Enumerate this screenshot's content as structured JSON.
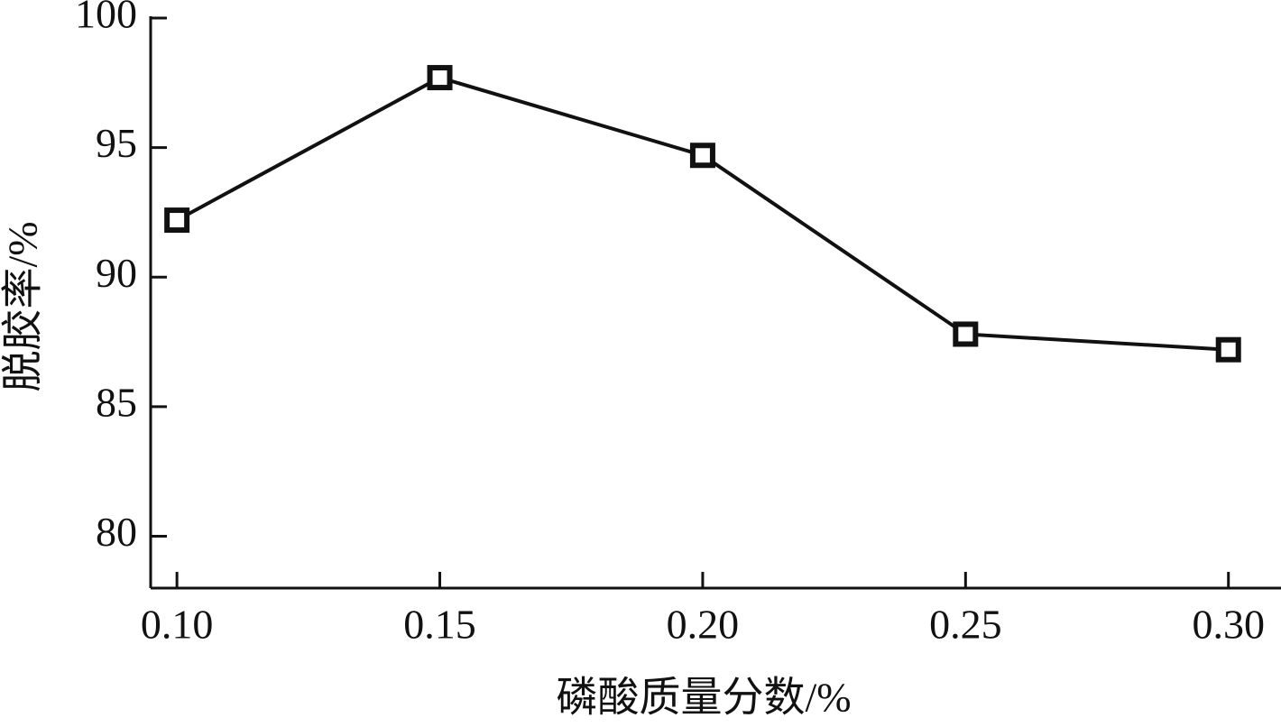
{
  "chart_data": {
    "type": "line",
    "x_label": "磷酸质量分数/%",
    "y_label": "脱胶率/%",
    "x": [
      0.1,
      0.15,
      0.2,
      0.25,
      0.3
    ],
    "series": [
      {
        "color": "#111111",
        "values": [
          92.2,
          97.7,
          94.7,
          87.8,
          87.2
        ],
        "errors": [
          0.3,
          0.4,
          0.3,
          0.3,
          0.3
        ]
      }
    ],
    "xlim": [
      0.095,
      0.31
    ],
    "ylim": [
      78,
      100
    ],
    "xticks": [
      {
        "value": 0.1,
        "label": "0.10"
      },
      {
        "value": 0.15,
        "label": "0.15"
      },
      {
        "value": 0.2,
        "label": "0.20"
      },
      {
        "value": 0.25,
        "label": "0.25"
      },
      {
        "value": 0.3,
        "label": "0.30"
      }
    ],
    "yticks": [
      80,
      85,
      90,
      95,
      100
    ],
    "grid": false
  }
}
